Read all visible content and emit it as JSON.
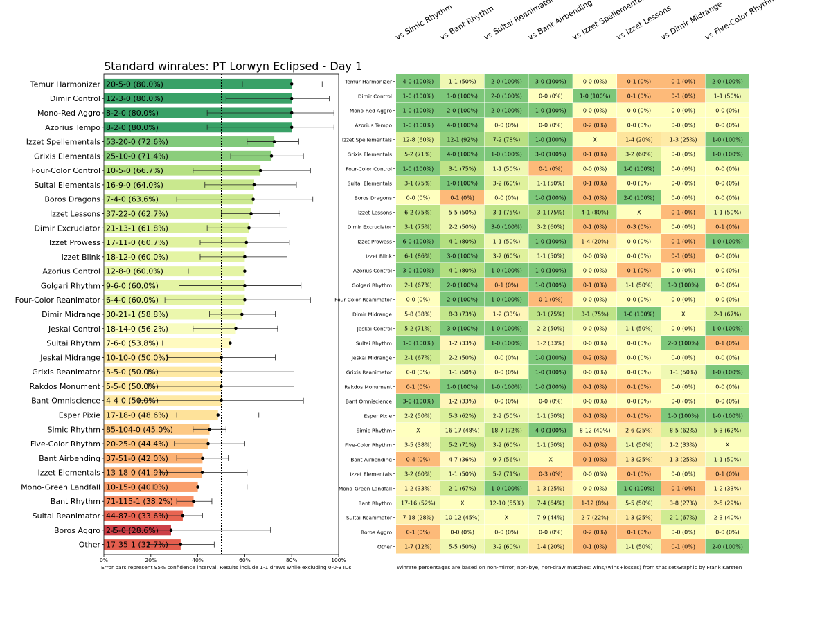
{
  "bar_chart": {
    "title": "Standard winrates: PT Lorwyn Eclipsed - Day 1",
    "note": "Error bars represent 95% confidence interval. Results include 1-1 draws while excluding 0-0-3 IDs.",
    "x_ticks": [
      "0%",
      "20%",
      "40%",
      "60%",
      "80%",
      "100%"
    ]
  },
  "heatmap": {
    "note": "Winrate percentages are based on non-mirror, non-bye, non-draw matches: wins/(wins+losses) from that set.",
    "credit": "Graphic by Frank Karsten"
  },
  "chart_data": [
    {
      "type": "bar",
      "orientation": "horizontal",
      "title": "Standard winrates: PT Lorwyn Eclipsed - Day 1",
      "xlim": [
        0,
        100
      ],
      "reference_line": 50,
      "grid": false,
      "categories": [
        "Temur Harmonizer",
        "Dimir Control",
        "Mono-Red Aggro",
        "Azorius Tempo",
        "Izzet Spellementals",
        "Grixis Elementals",
        "Four-Color Control",
        "Sultai Elementals",
        "Boros Dragons",
        "Izzet Lessons",
        "Dimir Excruciator",
        "Izzet Prowess",
        "Izzet Blink",
        "Azorius Control",
        "Golgari Rhythm",
        "Four-Color Reanimator",
        "Dimir Midrange",
        "Jeskai Control",
        "Sultai Rhythm",
        "Jeskai Midrange",
        "Grixis Reanimator",
        "Rakdos Monument",
        "Bant Omniscience",
        "Esper Pixie",
        "Simic Rhythm",
        "Five-Color Rhythm",
        "Bant Airbending",
        "Izzet Elementals",
        "Mono-Green Landfall",
        "Bant Rhythm",
        "Sultai Reanimator",
        "Boros Aggro",
        "Other"
      ],
      "labels": [
        "20-5-0 (80.0%)",
        "12-3-0 (80.0%)",
        "8-2-0 (80.0%)",
        "8-2-0 (80.0%)",
        "53-20-0 (72.6%)",
        "25-10-0 (71.4%)",
        "10-5-0 (66.7%)",
        "16-9-0 (64.0%)",
        "7-4-0 (63.6%)",
        "37-22-0 (62.7%)",
        "21-13-1 (61.8%)",
        "17-11-0 (60.7%)",
        "18-12-0 (60.0%)",
        "12-8-0 (60.0%)",
        "9-6-0 (60.0%)",
        "6-4-0 (60.0%)",
        "30-21-1 (58.8%)",
        "18-14-0 (56.2%)",
        "7-6-0 (53.8%)",
        "10-10-0 (50.0%)",
        "5-5-0 (50.0%)",
        "5-5-0 (50.0%)",
        "4-4-0 (50.0%)",
        "17-18-0 (48.6%)",
        "85-104-0 (45.0%)",
        "20-25-0 (44.4%)",
        "37-51-0 (42.0%)",
        "13-18-0 (41.9%)",
        "10-15-0 (40.0%)",
        "71-115-1 (38.2%)",
        "44-87-0 (33.6%)",
        "2-5-0 (28.6%)",
        "17-35-1 (32.7%)"
      ],
      "values": [
        80.0,
        80.0,
        80.0,
        80.0,
        72.6,
        71.4,
        66.7,
        64.0,
        63.6,
        62.7,
        61.8,
        60.7,
        60.0,
        60.0,
        60.0,
        60.0,
        58.8,
        56.2,
        53.8,
        50.0,
        50.0,
        50.0,
        50.0,
        48.6,
        45.0,
        44.4,
        42.0,
        41.9,
        40.0,
        38.2,
        33.6,
        28.6,
        32.7
      ],
      "ci_low": [
        59,
        52,
        44,
        44,
        61,
        54,
        38,
        43,
        31,
        50,
        44,
        41,
        41,
        36,
        32,
        26,
        45,
        38,
        25,
        27,
        19,
        19,
        15,
        31,
        38,
        30,
        31,
        24,
        21,
        31,
        25,
        4,
        19
      ],
      "ci_high": [
        93,
        96,
        98,
        98,
        83,
        85,
        88,
        82,
        89,
        75,
        78,
        79,
        78,
        81,
        84,
        88,
        73,
        74,
        81,
        73,
        81,
        81,
        85,
        66,
        52,
        60,
        53,
        61,
        61,
        46,
        42,
        71,
        47
      ]
    },
    {
      "type": "heatmap",
      "columns": [
        "vs Simic Rhythm",
        "vs Bant Rhythm",
        "vs Sultai Reanimator",
        "vs Bant Airbending",
        "vs Izzet Spellementals",
        "vs Izzet Lessons",
        "vs Dimir Midrange",
        "vs Five-Color Rhythm"
      ],
      "rows": [
        {
          "name": "Temur Harmonizer",
          "cells": [
            "4-0 (100%)",
            "1-1 (50%)",
            "2-0 (100%)",
            "3-0 (100%)",
            "0-0 (0%)",
            "0-1 (0%)",
            "0-1 (0%)",
            "2-0 (100%)"
          ],
          "rates": [
            100,
            50,
            100,
            100,
            null,
            0,
            0,
            100
          ]
        },
        {
          "name": "Dimir Control",
          "cells": [
            "1-0 (100%)",
            "1-0 (100%)",
            "2-0 (100%)",
            "0-0 (0%)",
            "1-0 (100%)",
            "0-1 (0%)",
            "0-1 (0%)",
            "1-1 (50%)"
          ],
          "rates": [
            100,
            100,
            100,
            null,
            100,
            0,
            0,
            50
          ]
        },
        {
          "name": "Mono-Red Aggro",
          "cells": [
            "1-0 (100%)",
            "2-0 (100%)",
            "2-0 (100%)",
            "1-0 (100%)",
            "0-0 (0%)",
            "0-0 (0%)",
            "0-0 (0%)",
            "0-0 (0%)"
          ],
          "rates": [
            100,
            100,
            100,
            100,
            null,
            null,
            null,
            null
          ]
        },
        {
          "name": "Azorius Tempo",
          "cells": [
            "1-0 (100%)",
            "4-0 (100%)",
            "0-0 (0%)",
            "0-0 (0%)",
            "0-2 (0%)",
            "0-0 (0%)",
            "0-0 (0%)",
            "0-0 (0%)"
          ],
          "rates": [
            100,
            100,
            null,
            null,
            0,
            null,
            null,
            null
          ]
        },
        {
          "name": "Izzet Spellementals",
          "cells": [
            "12-8 (60%)",
            "12-1 (92%)",
            "7-2 (78%)",
            "1-0 (100%)",
            "X",
            "1-4 (20%)",
            "1-3 (25%)",
            "1-0 (100%)"
          ],
          "rates": [
            60,
            92,
            78,
            100,
            null,
            20,
            25,
            100
          ]
        },
        {
          "name": "Grixis Elementals",
          "cells": [
            "5-2 (71%)",
            "4-0 (100%)",
            "1-0 (100%)",
            "3-0 (100%)",
            "0-1 (0%)",
            "3-2 (60%)",
            "0-0 (0%)",
            "1-0 (100%)"
          ],
          "rates": [
            71,
            100,
            100,
            100,
            0,
            60,
            null,
            100
          ]
        },
        {
          "name": "Four-Color Control",
          "cells": [
            "1-0 (100%)",
            "3-1 (75%)",
            "1-1 (50%)",
            "0-1 (0%)",
            "0-0 (0%)",
            "1-0 (100%)",
            "0-0 (0%)",
            "0-0 (0%)"
          ],
          "rates": [
            100,
            75,
            50,
            0,
            null,
            100,
            null,
            null
          ]
        },
        {
          "name": "Sultai Elementals",
          "cells": [
            "3-1 (75%)",
            "1-0 (100%)",
            "3-2 (60%)",
            "1-1 (50%)",
            "0-1 (0%)",
            "0-0 (0%)",
            "0-0 (0%)",
            "0-0 (0%)"
          ],
          "rates": [
            75,
            100,
            60,
            50,
            0,
            null,
            null,
            null
          ]
        },
        {
          "name": "Boros Dragons",
          "cells": [
            "0-0 (0%)",
            "0-1 (0%)",
            "0-0 (0%)",
            "1-0 (100%)",
            "0-1 (0%)",
            "2-0 (100%)",
            "0-0 (0%)",
            "0-0 (0%)"
          ],
          "rates": [
            null,
            0,
            null,
            100,
            0,
            100,
            null,
            null
          ]
        },
        {
          "name": "Izzet Lessons",
          "cells": [
            "6-2 (75%)",
            "5-5 (50%)",
            "3-1 (75%)",
            "3-1 (75%)",
            "4-1 (80%)",
            "X",
            "0-1 (0%)",
            "1-1 (50%)"
          ],
          "rates": [
            75,
            50,
            75,
            75,
            80,
            null,
            0,
            50
          ]
        },
        {
          "name": "Dimir Excruciator",
          "cells": [
            "3-1 (75%)",
            "2-2 (50%)",
            "3-0 (100%)",
            "3-2 (60%)",
            "0-1 (0%)",
            "0-3 (0%)",
            "0-0 (0%)",
            "0-1 (0%)"
          ],
          "rates": [
            75,
            50,
            100,
            60,
            0,
            0,
            null,
            0
          ]
        },
        {
          "name": "Izzet Prowess",
          "cells": [
            "6-0 (100%)",
            "4-1 (80%)",
            "1-1 (50%)",
            "1-0 (100%)",
            "1-4 (20%)",
            "0-0 (0%)",
            "0-1 (0%)",
            "1-0 (100%)"
          ],
          "rates": [
            100,
            80,
            50,
            100,
            20,
            null,
            0,
            100
          ]
        },
        {
          "name": "Izzet Blink",
          "cells": [
            "6-1 (86%)",
            "3-0 (100%)",
            "3-2 (60%)",
            "1-1 (50%)",
            "0-0 (0%)",
            "0-0 (0%)",
            "0-1 (0%)",
            "0-0 (0%)"
          ],
          "rates": [
            86,
            100,
            60,
            50,
            null,
            null,
            0,
            null
          ]
        },
        {
          "name": "Azorius Control",
          "cells": [
            "3-0 (100%)",
            "4-1 (80%)",
            "1-0 (100%)",
            "1-0 (100%)",
            "0-0 (0%)",
            "0-1 (0%)",
            "0-0 (0%)",
            "0-0 (0%)"
          ],
          "rates": [
            100,
            80,
            100,
            100,
            null,
            0,
            null,
            null
          ]
        },
        {
          "name": "Golgari Rhythm",
          "cells": [
            "2-1 (67%)",
            "2-0 (100%)",
            "0-1 (0%)",
            "1-0 (100%)",
            "0-1 (0%)",
            "1-1 (50%)",
            "1-0 (100%)",
            "0-0 (0%)"
          ],
          "rates": [
            67,
            100,
            0,
            100,
            0,
            50,
            100,
            null
          ]
        },
        {
          "name": "Four-Color Reanimator",
          "cells": [
            "0-0 (0%)",
            "2-0 (100%)",
            "1-0 (100%)",
            "0-1 (0%)",
            "0-0 (0%)",
            "0-0 (0%)",
            "0-0 (0%)",
            "0-0 (0%)"
          ],
          "rates": [
            null,
            100,
            100,
            0,
            null,
            null,
            null,
            null
          ]
        },
        {
          "name": "Dimir Midrange",
          "cells": [
            "5-8 (38%)",
            "8-3 (73%)",
            "1-2 (33%)",
            "3-1 (75%)",
            "3-1 (75%)",
            "1-0 (100%)",
            "X",
            "2-1 (67%)"
          ],
          "rates": [
            38,
            73,
            33,
            75,
            75,
            100,
            null,
            67
          ]
        },
        {
          "name": "Jeskai Control",
          "cells": [
            "5-2 (71%)",
            "3-0 (100%)",
            "1-0 (100%)",
            "2-2 (50%)",
            "0-0 (0%)",
            "1-1 (50%)",
            "0-0 (0%)",
            "1-0 (100%)"
          ],
          "rates": [
            71,
            100,
            100,
            50,
            null,
            50,
            null,
            100
          ]
        },
        {
          "name": "Sultai Rhythm",
          "cells": [
            "1-0 (100%)",
            "1-2 (33%)",
            "1-0 (100%)",
            "1-2 (33%)",
            "0-0 (0%)",
            "0-0 (0%)",
            "2-0 (100%)",
            "0-1 (0%)"
          ],
          "rates": [
            100,
            33,
            100,
            33,
            null,
            null,
            100,
            0
          ]
        },
        {
          "name": "Jeskai Midrange",
          "cells": [
            "2-1 (67%)",
            "2-2 (50%)",
            "0-0 (0%)",
            "1-0 (100%)",
            "0-2 (0%)",
            "0-0 (0%)",
            "0-0 (0%)",
            "0-0 (0%)"
          ],
          "rates": [
            67,
            50,
            null,
            100,
            0,
            null,
            null,
            null
          ]
        },
        {
          "name": "Grixis Reanimator",
          "cells": [
            "0-0 (0%)",
            "1-1 (50%)",
            "0-0 (0%)",
            "1-0 (100%)",
            "0-0 (0%)",
            "0-0 (0%)",
            "1-1 (50%)",
            "1-0 (100%)"
          ],
          "rates": [
            null,
            50,
            null,
            100,
            null,
            null,
            50,
            100
          ]
        },
        {
          "name": "Rakdos Monument",
          "cells": [
            "0-1 (0%)",
            "1-0 (100%)",
            "1-0 (100%)",
            "1-0 (100%)",
            "0-1 (0%)",
            "0-1 (0%)",
            "0-0 (0%)",
            "0-0 (0%)"
          ],
          "rates": [
            0,
            100,
            100,
            100,
            0,
            0,
            null,
            null
          ]
        },
        {
          "name": "Bant Omniscience",
          "cells": [
            "3-0 (100%)",
            "1-2 (33%)",
            "0-0 (0%)",
            "0-0 (0%)",
            "0-0 (0%)",
            "0-0 (0%)",
            "0-0 (0%)",
            "0-0 (0%)"
          ],
          "rates": [
            100,
            33,
            null,
            null,
            null,
            null,
            null,
            null
          ]
        },
        {
          "name": "Esper Pixie",
          "cells": [
            "2-2 (50%)",
            "5-3 (62%)",
            "2-2 (50%)",
            "1-1 (50%)",
            "0-1 (0%)",
            "0-1 (0%)",
            "1-0 (100%)",
            "1-0 (100%)"
          ],
          "rates": [
            50,
            62,
            50,
            50,
            0,
            0,
            100,
            100
          ]
        },
        {
          "name": "Simic Rhythm",
          "cells": [
            "X",
            "16-17 (48%)",
            "18-7 (72%)",
            "4-0 (100%)",
            "8-12 (40%)",
            "2-6 (25%)",
            "8-5 (62%)",
            "5-3 (62%)"
          ],
          "rates": [
            null,
            48,
            72,
            100,
            40,
            25,
            62,
            62
          ]
        },
        {
          "name": "Five-Color Rhythm",
          "cells": [
            "3-5 (38%)",
            "5-2 (71%)",
            "3-2 (60%)",
            "1-1 (50%)",
            "0-1 (0%)",
            "1-1 (50%)",
            "1-2 (33%)",
            "X"
          ],
          "rates": [
            38,
            71,
            60,
            50,
            0,
            50,
            33,
            null
          ]
        },
        {
          "name": "Bant Airbending",
          "cells": [
            "0-4 (0%)",
            "4-7 (36%)",
            "9-7 (56%)",
            "X",
            "0-1 (0%)",
            "1-3 (25%)",
            "1-3 (25%)",
            "1-1 (50%)"
          ],
          "rates": [
            0,
            36,
            56,
            null,
            0,
            25,
            25,
            50
          ]
        },
        {
          "name": "Izzet Elementals",
          "cells": [
            "3-2 (60%)",
            "1-1 (50%)",
            "5-2 (71%)",
            "0-3 (0%)",
            "0-0 (0%)",
            "0-1 (0%)",
            "0-0 (0%)",
            "0-1 (0%)"
          ],
          "rates": [
            60,
            50,
            71,
            0,
            null,
            0,
            null,
            0
          ]
        },
        {
          "name": "Mono-Green Landfall",
          "cells": [
            "1-2 (33%)",
            "2-1 (67%)",
            "1-0 (100%)",
            "1-3 (25%)",
            "0-0 (0%)",
            "1-0 (100%)",
            "0-1 (0%)",
            "1-2 (33%)"
          ],
          "rates": [
            33,
            67,
            100,
            25,
            null,
            100,
            0,
            33
          ]
        },
        {
          "name": "Bant Rhythm",
          "cells": [
            "17-16 (52%)",
            "X",
            "12-10 (55%)",
            "7-4 (64%)",
            "1-12 (8%)",
            "5-5 (50%)",
            "3-8 (27%)",
            "2-5 (29%)"
          ],
          "rates": [
            52,
            null,
            55,
            64,
            8,
            50,
            27,
            29
          ]
        },
        {
          "name": "Sultai Reanimator",
          "cells": [
            "7-18 (28%)",
            "10-12 (45%)",
            "X",
            "7-9 (44%)",
            "2-7 (22%)",
            "1-3 (25%)",
            "2-1 (67%)",
            "2-3 (40%)"
          ],
          "rates": [
            28,
            45,
            null,
            44,
            22,
            25,
            67,
            40
          ]
        },
        {
          "name": "Boros Aggro",
          "cells": [
            "0-1 (0%)",
            "0-0 (0%)",
            "0-0 (0%)",
            "0-0 (0%)",
            "0-2 (0%)",
            "0-1 (0%)",
            "0-0 (0%)",
            "0-0 (0%)"
          ],
          "rates": [
            0,
            null,
            null,
            null,
            0,
            0,
            null,
            null
          ]
        },
        {
          "name": "Other",
          "cells": [
            "1-7 (12%)",
            "5-5 (50%)",
            "3-2 (60%)",
            "1-4 (20%)",
            "0-1 (0%)",
            "1-1 (50%)",
            "0-1 (0%)",
            "2-0 (100%)"
          ],
          "rates": [
            12,
            50,
            60,
            20,
            0,
            50,
            0,
            100
          ]
        }
      ]
    }
  ]
}
